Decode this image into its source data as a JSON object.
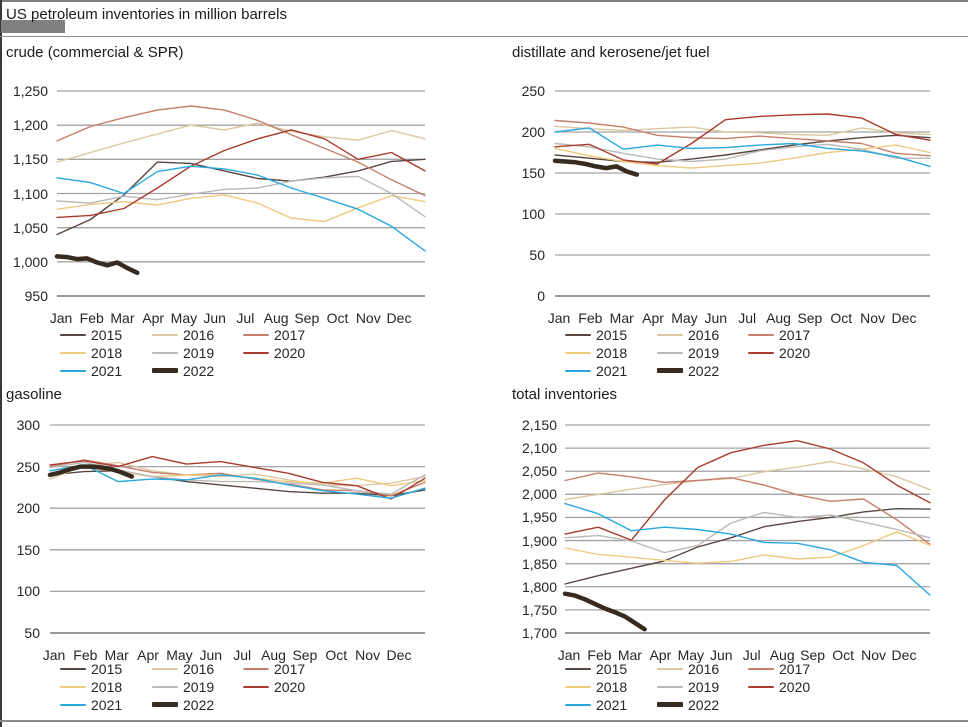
{
  "page": {
    "title": "US petroleum inventories in million barrels"
  },
  "colors": {
    "series": {
      "2015": "#574740",
      "2016": "#dcc7a1",
      "2017": "#c57f6b",
      "2018": "#eec97e",
      "2019": "#bcbab8",
      "2020": "#a83b2c",
      "2021": "#29a8e0",
      "2022": "#372b1f"
    },
    "gridline": "#a3a3a3",
    "axis_line": "#5a5a5a",
    "border_gray": "#808080",
    "text": "#262626",
    "redaction_block": "#808080"
  },
  "legend": {
    "rows": [
      [
        "2015",
        "2016",
        "2017"
      ],
      [
        "2018",
        "2019",
        "2020"
      ],
      [
        "2021",
        "2022"
      ]
    ]
  },
  "chart_data": [
    {
      "type": "line",
      "title": "crude (commercial & SPR)",
      "ylim": [
        950,
        1250
      ],
      "grid": true,
      "legend_position": "bottom",
      "ytick_values": [
        950,
        1000,
        1050,
        1100,
        1150,
        1200,
        1250
      ],
      "ytick_labels": [
        "950",
        "1,000",
        "1,050",
        "1,100",
        "1,150",
        "1,200",
        "1,250"
      ],
      "x_categories": [
        "Jan",
        "Feb",
        "Mar",
        "Apr",
        "May",
        "Jun",
        "Jul",
        "Aug",
        "Sep",
        "Oct",
        "Nov",
        "Dec"
      ],
      "series": [
        {
          "name": "2015",
          "values": [
            1040,
            1062,
            1098,
            1146,
            1144,
            1133,
            1122,
            1118,
            1124,
            1133,
            1147,
            1150
          ]
        },
        {
          "name": "2016",
          "values": [
            1146,
            1160,
            1174,
            1187,
            1200,
            1193,
            1203,
            1191,
            1183,
            1178,
            1192,
            1180
          ]
        },
        {
          "name": "2017",
          "values": [
            1177,
            1198,
            1211,
            1222,
            1228,
            1222,
            1207,
            1186,
            1166,
            1146,
            1120,
            1097
          ]
        },
        {
          "name": "2018",
          "values": [
            1077,
            1084,
            1088,
            1083,
            1093,
            1098,
            1086,
            1064,
            1059,
            1079,
            1097,
            1088
          ]
        },
        {
          "name": "2019",
          "values": [
            1089,
            1086,
            1096,
            1091,
            1099,
            1106,
            1108,
            1118,
            1123,
            1125,
            1100,
            1066
          ]
        },
        {
          "name": "2020",
          "values": [
            1065,
            1068,
            1078,
            1108,
            1140,
            1163,
            1180,
            1193,
            1180,
            1150,
            1160,
            1133
          ]
        },
        {
          "name": "2021",
          "values": [
            1123,
            1116,
            1100,
            1132,
            1140,
            1136,
            1127,
            1108,
            1093,
            1077,
            1052,
            1016
          ]
        },
        {
          "name": "2022",
          "x": [
            0,
            0.3,
            0.6,
            0.9,
            1.2,
            1.5,
            1.8,
            2.1,
            2.4
          ],
          "values": [
            1008,
            1007,
            1004,
            1005,
            999,
            995,
            999,
            991,
            984
          ]
        }
      ]
    },
    {
      "type": "line",
      "title": "distillate and kerosene/jet fuel",
      "ylim": [
        0,
        250
      ],
      "grid": true,
      "legend_position": "bottom",
      "ytick_values": [
        0,
        50,
        100,
        150,
        200,
        250
      ],
      "ytick_labels": [
        "0",
        "50",
        "100",
        "150",
        "200",
        "250"
      ],
      "x_categories": [
        "Jan",
        "Feb",
        "Mar",
        "Apr",
        "May",
        "Jun",
        "Jul",
        "Aug",
        "Sep",
        "Oct",
        "Nov",
        "Dec"
      ],
      "series": [
        {
          "name": "2015",
          "values": [
            172,
            168,
            164,
            163,
            167,
            172,
            178,
            184,
            189,
            193,
            196,
            193
          ]
        },
        {
          "name": "2016",
          "values": [
            207,
            204,
            202,
            204,
            206,
            200,
            199,
            197,
            196,
            205,
            199,
            197
          ]
        },
        {
          "name": "2017",
          "values": [
            214,
            211,
            206,
            196,
            193,
            192,
            195,
            192,
            189,
            186,
            174,
            171
          ]
        },
        {
          "name": "2018",
          "values": [
            180,
            171,
            164,
            159,
            156,
            159,
            162,
            168,
            175,
            179,
            184,
            175
          ]
        },
        {
          "name": "2019",
          "values": [
            186,
            182,
            174,
            167,
            164,
            167,
            177,
            182,
            185,
            179,
            168,
            168
          ]
        },
        {
          "name": "2020",
          "values": [
            182,
            185,
            166,
            161,
            186,
            215,
            219,
            221,
            222,
            217,
            197,
            190
          ]
        },
        {
          "name": "2021",
          "values": [
            200,
            205,
            179,
            184,
            180,
            181,
            184,
            186,
            180,
            177,
            170,
            158
          ]
        },
        {
          "name": "2022",
          "x": [
            0,
            0.3,
            0.6,
            0.9,
            1.2,
            1.5,
            1.8,
            2.1,
            2.4
          ],
          "values": [
            165,
            164,
            163,
            161,
            158,
            156,
            158,
            152,
            148
          ]
        }
      ]
    },
    {
      "type": "line",
      "title": "gasoline",
      "ylim": [
        50,
        300
      ],
      "grid": true,
      "legend_position": "bottom",
      "ytick_values": [
        50,
        100,
        150,
        200,
        250,
        300
      ],
      "ytick_labels": [
        "50",
        "100",
        "150",
        "200",
        "250",
        "300"
      ],
      "x_categories": [
        "Jan",
        "Feb",
        "Mar",
        "Apr",
        "May",
        "Jun",
        "Jul",
        "Aug",
        "Sep",
        "Oct",
        "Nov",
        "Dec"
      ],
      "series": [
        {
          "name": "2015",
          "values": [
            240,
            244,
            245,
            238,
            232,
            228,
            224,
            220,
            218,
            218,
            215,
            222
          ]
        },
        {
          "name": "2016",
          "values": [
            235,
            251,
            255,
            245,
            240,
            238,
            241,
            234,
            228,
            227,
            230,
            238
          ]
        },
        {
          "name": "2017",
          "values": [
            250,
            258,
            251,
            243,
            240,
            242,
            235,
            229,
            222,
            221,
            215,
            231
          ]
        },
        {
          "name": "2018",
          "values": [
            240,
            249,
            244,
            238,
            240,
            240,
            236,
            232,
            230,
            236,
            227,
            233
          ]
        },
        {
          "name": "2019",
          "values": [
            249,
            255,
            246,
            238,
            234,
            232,
            232,
            230,
            228,
            221,
            217,
            240
          ]
        },
        {
          "name": "2020",
          "values": [
            252,
            257,
            250,
            262,
            253,
            256,
            249,
            242,
            231,
            227,
            211,
            236
          ]
        },
        {
          "name": "2021",
          "values": [
            245,
            252,
            232,
            235,
            234,
            240,
            236,
            228,
            221,
            217,
            212,
            224
          ]
        },
        {
          "name": "2022",
          "x": [
            0,
            0.3,
            0.6,
            0.9,
            1.2,
            1.5,
            1.8,
            2.1,
            2.4
          ],
          "values": [
            240,
            243,
            247,
            250,
            250,
            249,
            247,
            243,
            238
          ]
        }
      ]
    },
    {
      "type": "line",
      "title": "total inventories",
      "ylim": [
        1700,
        2150
      ],
      "grid": true,
      "legend_position": "bottom",
      "ytick_values": [
        1700,
        1750,
        1800,
        1850,
        1900,
        1950,
        2000,
        2050,
        2100,
        2150
      ],
      "ytick_labels": [
        "1,700",
        "1,750",
        "1,800",
        "1,850",
        "1,900",
        "1,950",
        "2,000",
        "2,050",
        "2,100",
        "2,150"
      ],
      "x_categories": [
        "Jan",
        "Feb",
        "Mar",
        "Apr",
        "May",
        "Jun",
        "Jul",
        "Aug",
        "Sep",
        "Oct",
        "Nov",
        "Dec"
      ],
      "series": [
        {
          "name": "2015",
          "values": [
            1806,
            1824,
            1840,
            1856,
            1886,
            1906,
            1930,
            1941,
            1950,
            1962,
            1969,
            1968
          ]
        },
        {
          "name": "2016",
          "values": [
            1989,
            2000,
            2011,
            2021,
            2030,
            2034,
            2049,
            2059,
            2071,
            2055,
            2038,
            2010
          ]
        },
        {
          "name": "2017",
          "values": [
            2030,
            2046,
            2038,
            2026,
            2030,
            2036,
            2020,
            1999,
            1985,
            1990,
            1945,
            1892
          ]
        },
        {
          "name": "2018",
          "values": [
            1884,
            1870,
            1864,
            1857,
            1851,
            1855,
            1869,
            1860,
            1864,
            1889,
            1919,
            1890
          ]
        },
        {
          "name": "2019",
          "values": [
            1906,
            1911,
            1899,
            1874,
            1889,
            1938,
            1961,
            1950,
            1955,
            1940,
            1924,
            1906
          ]
        },
        {
          "name": "2020",
          "values": [
            1914,
            1929,
            1901,
            1988,
            2058,
            2090,
            2106,
            2116,
            2098,
            2068,
            2020,
            1982
          ]
        },
        {
          "name": "2021",
          "values": [
            1980,
            1958,
            1921,
            1929,
            1924,
            1914,
            1896,
            1894,
            1880,
            1853,
            1846,
            1782
          ]
        },
        {
          "name": "2022",
          "x": [
            0,
            0.3,
            0.6,
            0.9,
            1.2,
            1.5,
            1.8,
            2.1,
            2.4
          ],
          "values": [
            1785,
            1781,
            1773,
            1763,
            1753,
            1745,
            1736,
            1722,
            1708
          ]
        }
      ]
    }
  ]
}
